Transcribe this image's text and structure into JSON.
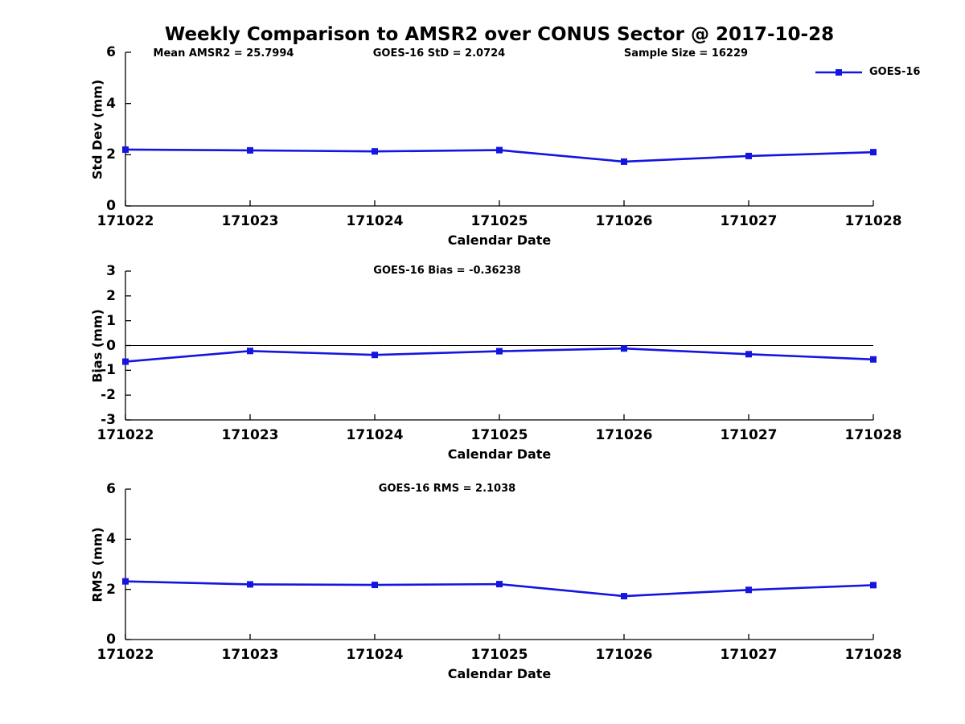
{
  "figure": {
    "title": "Weekly Comparison to AMSR2 over CONUS Sector @ 2017-10-28",
    "annotations": [
      {
        "text": "Mean AMSR2 = 25.7994"
      },
      {
        "text": "GOES-16 StD = 2.0724"
      },
      {
        "text": "Sample Size = 16229"
      }
    ],
    "legend": {
      "label": "GOES-16",
      "line_color": "#1515e0",
      "marker": "filled-square"
    }
  },
  "chart_data": [
    {
      "type": "line",
      "title": "",
      "categories": [
        "171022",
        "171023",
        "171024",
        "171025",
        "171026",
        "171027",
        "171028"
      ],
      "series": [
        {
          "name": "GOES-16",
          "values": [
            2.2,
            2.17,
            2.13,
            2.18,
            1.73,
            1.95,
            2.1
          ]
        }
      ],
      "xlabel": "Calendar Date",
      "ylabel": "Std Dev (mm)",
      "ylim": [
        0,
        6
      ],
      "yticks": [
        0,
        2,
        4,
        6
      ],
      "grid": false,
      "zero_line": false,
      "legend_position": "top-right-outside"
    },
    {
      "type": "line",
      "title": "GOES-16 Bias  = -0.36238",
      "categories": [
        "171022",
        "171023",
        "171024",
        "171025",
        "171026",
        "171027",
        "171028"
      ],
      "series": [
        {
          "name": "GOES-16",
          "values": [
            -0.65,
            -0.22,
            -0.38,
            -0.23,
            -0.12,
            -0.35,
            -0.56
          ]
        }
      ],
      "xlabel": "Calendar Date",
      "ylabel": "Bias (mm)",
      "ylim": [
        -3,
        3
      ],
      "yticks": [
        -3,
        -2,
        -1,
        0,
        1,
        2,
        3
      ],
      "grid": false,
      "zero_line": true
    },
    {
      "type": "line",
      "title": "GOES-16 RMS = 2.1038",
      "categories": [
        "171022",
        "171023",
        "171024",
        "171025",
        "171026",
        "171027",
        "171028"
      ],
      "series": [
        {
          "name": "GOES-16",
          "values": [
            2.32,
            2.2,
            2.18,
            2.21,
            1.73,
            1.98,
            2.17
          ]
        }
      ],
      "xlabel": "Calendar Date",
      "ylabel": "RMS (mm)",
      "ylim": [
        0,
        6
      ],
      "yticks": [
        0,
        2,
        4,
        6
      ],
      "grid": false,
      "zero_line": false
    }
  ]
}
